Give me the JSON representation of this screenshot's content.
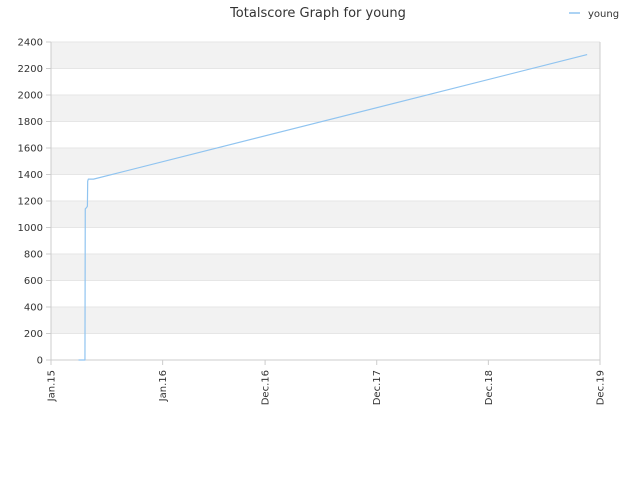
{
  "chart_data": {
    "type": "line",
    "title": "Totalscore Graph for young",
    "xlabel": "",
    "ylabel": "",
    "ylim": [
      0,
      2400
    ],
    "yticks": [
      0,
      200,
      400,
      600,
      800,
      1000,
      1200,
      1400,
      1600,
      1800,
      2000,
      2200,
      2400
    ],
    "xlim": [
      "2015-01-01",
      "2019-12-01"
    ],
    "xticks": [
      {
        "label": "Jan.15",
        "date": "2015-01-01"
      },
      {
        "label": "Jan.16",
        "date": "2016-01-01"
      },
      {
        "label": "Dec.16",
        "date": "2016-12-01"
      },
      {
        "label": "Dec.17",
        "date": "2017-12-01"
      },
      {
        "label": "Dec.18",
        "date": "2018-12-01"
      },
      {
        "label": "Dec.19",
        "date": "2019-12-01"
      }
    ],
    "grid": "horizontal alternating bands",
    "legend_position": "top-right",
    "series": [
      {
        "name": "young",
        "color": "#90c4f0",
        "points": [
          {
            "x": "2015-04-01",
            "y": 0
          },
          {
            "x": "2015-04-22",
            "y": 0
          },
          {
            "x": "2015-04-23",
            "y": 1140
          },
          {
            "x": "2015-04-27",
            "y": 1150
          },
          {
            "x": "2015-04-30",
            "y": 1160
          },
          {
            "x": "2015-05-01",
            "y": 1350
          },
          {
            "x": "2015-05-03",
            "y": 1365
          },
          {
            "x": "2015-05-20",
            "y": 1365
          },
          {
            "x": "2019-10-20",
            "y": 2305
          }
        ]
      }
    ]
  },
  "colors": {
    "band": "#f2f2f2",
    "gridline": "#e6e6e6",
    "axis": "#cccccc",
    "series": "#90c4f0"
  }
}
